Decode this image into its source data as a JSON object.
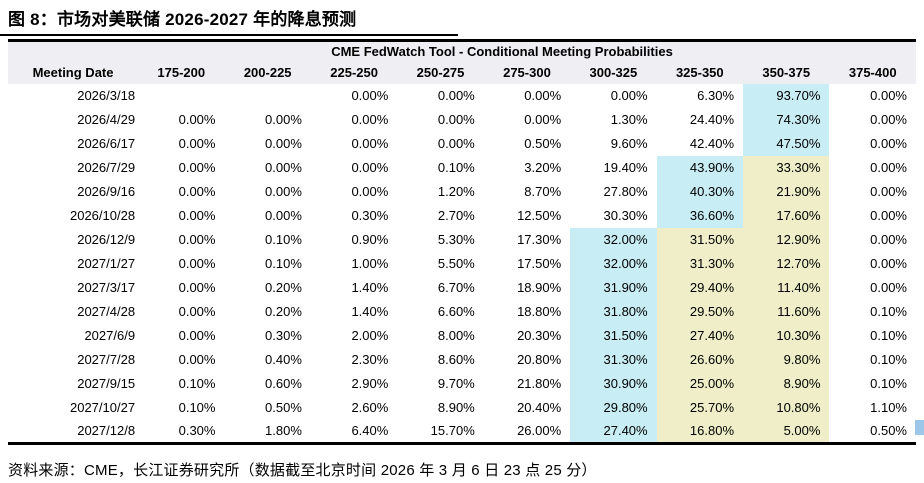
{
  "page": {
    "title": "图  8：市场对美联储 2026-2027 年的降息预测",
    "source_note": "资料来源：CME，长江证券研究所（数据截至北京时间 2026 年 3 月 6 日 23 点 25 分）"
  },
  "colors": {
    "highlight_cyan": "#c9edf5",
    "highlight_yellow": "#efeec8",
    "header_band": "#efeef3",
    "border_black": "#000000",
    "edge_marker_blue": "#9cc7e8"
  },
  "table": {
    "caption": "CME FedWatch Tool - Conditional Meeting Probabilities",
    "columns": [
      "Meeting Date",
      "175-200",
      "200-225",
      "225-250",
      "250-275",
      "275-300",
      "300-325",
      "325-350",
      "350-375",
      "375-400"
    ],
    "rows": [
      {
        "date": "2026/3/18",
        "values": [
          "",
          "",
          "0.00%",
          "0.00%",
          "0.00%",
          "0.00%",
          "6.30%",
          "93.70%",
          "0.00%"
        ],
        "cyan": 7,
        "yellow": []
      },
      {
        "date": "2026/4/29",
        "values": [
          "0.00%",
          "0.00%",
          "0.00%",
          "0.00%",
          "0.00%",
          "1.30%",
          "24.40%",
          "74.30%",
          "0.00%"
        ],
        "cyan": 7,
        "yellow": []
      },
      {
        "date": "2026/6/17",
        "values": [
          "0.00%",
          "0.00%",
          "0.00%",
          "0.00%",
          "0.50%",
          "9.60%",
          "42.40%",
          "47.50%",
          "0.00%"
        ],
        "cyan": 7,
        "yellow": []
      },
      {
        "date": "2026/7/29",
        "values": [
          "0.00%",
          "0.00%",
          "0.00%",
          "0.10%",
          "3.20%",
          "19.40%",
          "43.90%",
          "33.30%",
          "0.00%"
        ],
        "cyan": 6,
        "yellow": [
          7
        ]
      },
      {
        "date": "2026/9/16",
        "values": [
          "0.00%",
          "0.00%",
          "0.00%",
          "1.20%",
          "8.70%",
          "27.80%",
          "40.30%",
          "21.90%",
          "0.00%"
        ],
        "cyan": 6,
        "yellow": [
          7
        ]
      },
      {
        "date": "2026/10/28",
        "values": [
          "0.00%",
          "0.00%",
          "0.30%",
          "2.70%",
          "12.50%",
          "30.30%",
          "36.60%",
          "17.60%",
          "0.00%"
        ],
        "cyan": 6,
        "yellow": [
          7
        ]
      },
      {
        "date": "2026/12/9",
        "values": [
          "0.00%",
          "0.10%",
          "0.90%",
          "5.30%",
          "17.30%",
          "32.00%",
          "31.50%",
          "12.90%",
          "0.00%"
        ],
        "cyan": 5,
        "yellow": [
          6,
          7
        ]
      },
      {
        "date": "2027/1/27",
        "values": [
          "0.00%",
          "0.10%",
          "1.00%",
          "5.50%",
          "17.50%",
          "32.00%",
          "31.30%",
          "12.70%",
          "0.00%"
        ],
        "cyan": 5,
        "yellow": [
          6,
          7
        ]
      },
      {
        "date": "2027/3/17",
        "values": [
          "0.00%",
          "0.20%",
          "1.40%",
          "6.70%",
          "18.90%",
          "31.90%",
          "29.40%",
          "11.40%",
          "0.00%"
        ],
        "cyan": 5,
        "yellow": [
          6,
          7
        ]
      },
      {
        "date": "2027/4/28",
        "values": [
          "0.00%",
          "0.20%",
          "1.40%",
          "6.60%",
          "18.80%",
          "31.80%",
          "29.50%",
          "11.60%",
          "0.10%"
        ],
        "cyan": 5,
        "yellow": [
          6,
          7
        ]
      },
      {
        "date": "2027/6/9",
        "values": [
          "0.00%",
          "0.30%",
          "2.00%",
          "8.00%",
          "20.30%",
          "31.50%",
          "27.40%",
          "10.30%",
          "0.10%"
        ],
        "cyan": 5,
        "yellow": [
          6,
          7
        ]
      },
      {
        "date": "2027/7/28",
        "values": [
          "0.00%",
          "0.40%",
          "2.30%",
          "8.60%",
          "20.80%",
          "31.30%",
          "26.60%",
          "9.80%",
          "0.10%"
        ],
        "cyan": 5,
        "yellow": [
          6,
          7
        ]
      },
      {
        "date": "2027/9/15",
        "values": [
          "0.10%",
          "0.60%",
          "2.90%",
          "9.70%",
          "21.80%",
          "30.90%",
          "25.00%",
          "8.90%",
          "0.10%"
        ],
        "cyan": 5,
        "yellow": [
          6,
          7
        ]
      },
      {
        "date": "2027/10/27",
        "values": [
          "0.10%",
          "0.50%",
          "2.60%",
          "8.90%",
          "20.40%",
          "29.80%",
          "25.70%",
          "10.80%",
          "1.10%"
        ],
        "cyan": 5,
        "yellow": [
          6,
          7
        ]
      },
      {
        "date": "2027/12/8",
        "values": [
          "0.30%",
          "1.80%",
          "6.40%",
          "15.70%",
          "26.00%",
          "27.40%",
          "16.80%",
          "5.00%",
          "0.50%"
        ],
        "cyan": 5,
        "yellow": [
          6,
          7
        ]
      }
    ]
  },
  "chart_data": {
    "type": "table",
    "title": "CME FedWatch Tool - Conditional Meeting Probabilities",
    "columns": [
      "Meeting Date",
      "175-200",
      "200-225",
      "225-250",
      "250-275",
      "275-300",
      "300-325",
      "325-350",
      "350-375",
      "375-400"
    ],
    "rows": [
      [
        "2026/3/18",
        "",
        "",
        "0.00%",
        "0.00%",
        "0.00%",
        "0.00%",
        "6.30%",
        "93.70%",
        "0.00%"
      ],
      [
        "2026/4/29",
        "0.00%",
        "0.00%",
        "0.00%",
        "0.00%",
        "0.00%",
        "1.30%",
        "24.40%",
        "74.30%",
        "0.00%"
      ],
      [
        "2026/6/17",
        "0.00%",
        "0.00%",
        "0.00%",
        "0.00%",
        "0.50%",
        "9.60%",
        "42.40%",
        "47.50%",
        "0.00%"
      ],
      [
        "2026/7/29",
        "0.00%",
        "0.00%",
        "0.00%",
        "0.10%",
        "3.20%",
        "19.40%",
        "43.90%",
        "33.30%",
        "0.00%"
      ],
      [
        "2026/9/16",
        "0.00%",
        "0.00%",
        "0.00%",
        "1.20%",
        "8.70%",
        "27.80%",
        "40.30%",
        "21.90%",
        "0.00%"
      ],
      [
        "2026/10/28",
        "0.00%",
        "0.00%",
        "0.30%",
        "2.70%",
        "12.50%",
        "30.30%",
        "36.60%",
        "17.60%",
        "0.00%"
      ],
      [
        "2026/12/9",
        "0.00%",
        "0.10%",
        "0.90%",
        "5.30%",
        "17.30%",
        "32.00%",
        "31.50%",
        "12.90%",
        "0.00%"
      ],
      [
        "2027/1/27",
        "0.00%",
        "0.10%",
        "1.00%",
        "5.50%",
        "17.50%",
        "32.00%",
        "31.30%",
        "12.70%",
        "0.00%"
      ],
      [
        "2027/3/17",
        "0.00%",
        "0.20%",
        "1.40%",
        "6.70%",
        "18.90%",
        "31.90%",
        "29.40%",
        "11.40%",
        "0.00%"
      ],
      [
        "2027/4/28",
        "0.00%",
        "0.20%",
        "1.40%",
        "6.60%",
        "18.80%",
        "31.80%",
        "29.50%",
        "11.60%",
        "0.10%"
      ],
      [
        "2027/6/9",
        "0.00%",
        "0.30%",
        "2.00%",
        "8.00%",
        "20.30%",
        "31.50%",
        "27.40%",
        "10.30%",
        "0.10%"
      ],
      [
        "2027/7/28",
        "0.00%",
        "0.40%",
        "2.30%",
        "8.60%",
        "20.80%",
        "31.30%",
        "26.60%",
        "9.80%",
        "0.10%"
      ],
      [
        "2027/9/15",
        "0.10%",
        "0.60%",
        "2.90%",
        "9.70%",
        "21.80%",
        "30.90%",
        "25.00%",
        "8.90%",
        "0.10%"
      ],
      [
        "2027/10/27",
        "0.10%",
        "0.50%",
        "2.60%",
        "8.90%",
        "20.40%",
        "29.80%",
        "25.70%",
        "10.80%",
        "1.10%"
      ],
      [
        "2027/12/8",
        "0.30%",
        "1.80%",
        "6.40%",
        "15.70%",
        "26.00%",
        "27.40%",
        "16.80%",
        "5.00%",
        "0.50%"
      ]
    ],
    "legend": {
      "cyan_highlight": "highest-probability rate band per meeting",
      "yellow_highlight": "adjacent higher rate bands"
    }
  }
}
